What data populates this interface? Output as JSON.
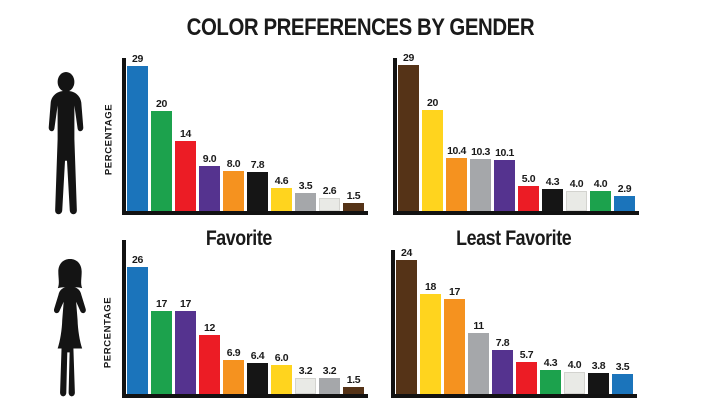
{
  "page_title": "COLOR PREFERENCES BY GENDER",
  "axis_label": "PERCENTAGE",
  "sections": {
    "favorite": "Favorite",
    "least_favorite": "Least Favorite"
  },
  "figures": {
    "male": "male-silhouette",
    "female": "female-silhouette"
  },
  "palette": {
    "blue": "#1B74BB",
    "green": "#1CA24D",
    "red": "#EC1C25",
    "purple": "#55338F",
    "orange": "#F5921F",
    "black": "#151515",
    "yellow": "#FFD41E",
    "gray": "#A5A7AA",
    "white": "#E9EAE6",
    "brown": "#553317"
  },
  "chart_data": [
    {
      "id": "male-favorite",
      "type": "bar",
      "group": "Male",
      "section": "Favorite",
      "ylabel": "PERCENTAGE",
      "categories": [
        "blue",
        "green",
        "red",
        "purple",
        "orange",
        "black",
        "yellow",
        "gray",
        "white",
        "brown"
      ],
      "values": [
        29,
        20,
        14,
        9.0,
        8.0,
        7.8,
        4.6,
        3.5,
        2.6,
        1.5
      ],
      "labels": [
        "29",
        "20",
        "14",
        "9.0",
        "8.0",
        "7.8",
        "4.6",
        "3.5",
        "2.6",
        "1.5"
      ]
    },
    {
      "id": "male-least-favorite",
      "type": "bar",
      "group": "Male",
      "section": "Least Favorite",
      "categories": [
        "brown",
        "yellow",
        "orange",
        "gray",
        "purple",
        "red",
        "black",
        "white",
        "green",
        "blue"
      ],
      "values": [
        29,
        20,
        10.4,
        10.3,
        10.1,
        5.0,
        4.3,
        4.0,
        4.0,
        2.9
      ],
      "labels": [
        "29",
        "20",
        "10.4",
        "10.3",
        "10.1",
        "5.0",
        "4.3",
        "4.0",
        "4.0",
        "2.9"
      ]
    },
    {
      "id": "female-favorite",
      "type": "bar",
      "group": "Female",
      "section": "Favorite",
      "ylabel": "PERCENTAGE",
      "categories": [
        "blue",
        "green",
        "purple",
        "red",
        "orange",
        "black",
        "yellow",
        "white",
        "gray",
        "brown"
      ],
      "values": [
        26,
        17,
        17,
        12,
        6.9,
        6.4,
        6.0,
        3.2,
        3.2,
        1.5
      ],
      "labels": [
        "26",
        "17",
        "17",
        "12",
        "6.9",
        "6.4",
        "6.0",
        "3.2",
        "3.2",
        "1.5"
      ]
    },
    {
      "id": "female-least-favorite",
      "type": "bar",
      "group": "Female",
      "section": "Least Favorite",
      "categories": [
        "brown",
        "yellow",
        "orange",
        "gray",
        "purple",
        "red",
        "green",
        "white",
        "black",
        "blue"
      ],
      "values": [
        24,
        18,
        17,
        11,
        7.8,
        5.7,
        4.3,
        4.0,
        3.8,
        3.5
      ],
      "labels": [
        "24",
        "18",
        "17",
        "11",
        "7.8",
        "5.7",
        "4.3",
        "4.0",
        "3.8",
        "3.5"
      ]
    }
  ]
}
